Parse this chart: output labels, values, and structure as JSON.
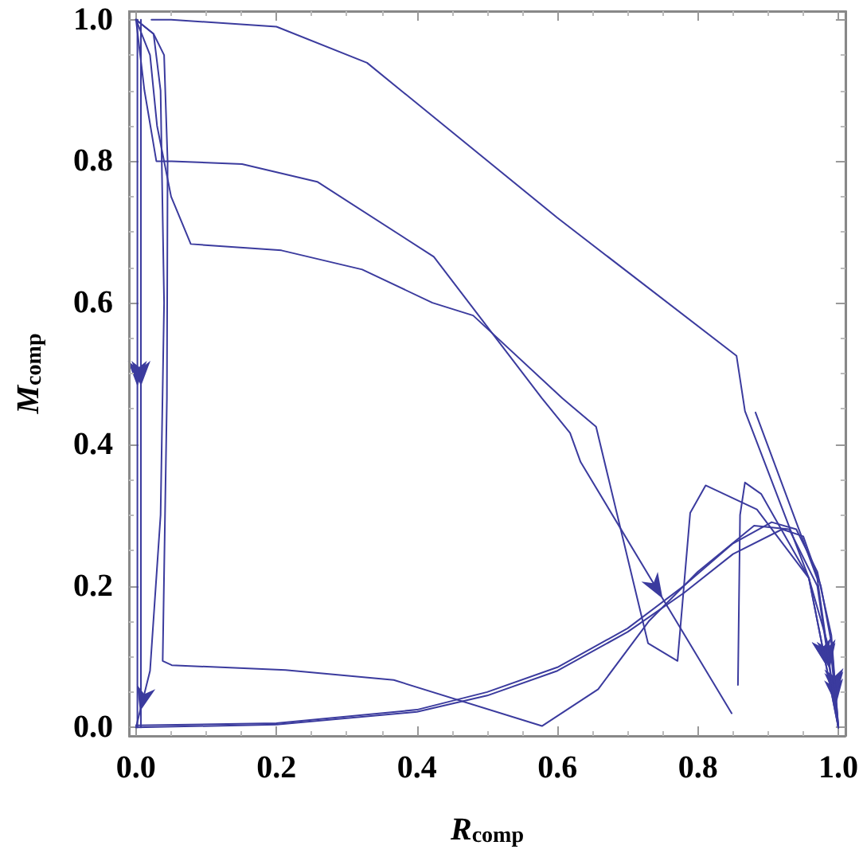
{
  "chart_data": {
    "type": "line",
    "xlabel": "R$_{comp}$",
    "ylabel": "M$_{comp}$",
    "xlim": [
      -0.01,
      1.01
    ],
    "ylim": [
      -0.012,
      1.012
    ],
    "xticks": [
      {
        "value": 0,
        "label": "0.0"
      },
      0.2,
      0.4,
      0.6,
      0.8,
      {
        "value": 1,
        "label": "1.0"
      }
    ],
    "yticks": [
      {
        "value": 0,
        "label": "0.0"
      },
      0.2,
      0.4,
      0.6,
      0.8,
      {
        "value": 1,
        "label": "1.0"
      }
    ],
    "grid": false,
    "marker": "none",
    "line_style": "solid",
    "series": [
      {
        "color": "#3b3b9e",
        "x": [
          0.022,
          0.05,
          0.2,
          0.329,
          0.6,
          0.855,
          0.867,
          0.958,
          0.99,
          1.0
        ],
        "values": [
          1.0,
          1.0,
          0.99,
          0.939,
          0.72,
          0.525,
          0.447,
          0.211,
          0.1,
          0.0
        ]
      },
      {
        "color": "#3b3b9e",
        "x": [
          0.0,
          0.012,
          0.029,
          0.051,
          0.151,
          0.258,
          0.424,
          0.578,
          0.618,
          0.633,
          0.848
        ],
        "values": [
          1.0,
          0.9,
          0.8,
          0.8,
          0.796,
          0.771,
          0.665,
          0.465,
          0.416,
          0.375,
          0.02
        ]
      },
      {
        "color": "#3b3b9e",
        "x": [
          0.0,
          0.02,
          0.03,
          0.05,
          0.078,
          0.207,
          0.322,
          0.422,
          0.48,
          0.607,
          0.655,
          0.729,
          0.771,
          0.789,
          0.811,
          0.884,
          0.958,
          1.0
        ],
        "values": [
          1.0,
          0.95,
          0.85,
          0.75,
          0.683,
          0.674,
          0.647,
          0.6,
          0.582,
          0.465,
          0.425,
          0.119,
          0.094,
          0.303,
          0.342,
          0.308,
          0.211,
          0.0
        ]
      },
      {
        "color": "#3b3b9e",
        "x": [
          0.0,
          0.025,
          0.04,
          0.045,
          0.044,
          0.038,
          0.051,
          0.213,
          0.367,
          0.578,
          0.658,
          0.73,
          0.8,
          0.88,
          0.93,
          0.97,
          1.0
        ],
        "values": [
          1.0,
          0.98,
          0.95,
          0.8,
          0.465,
          0.094,
          0.088,
          0.081,
          0.067,
          0.002,
          0.054,
          0.15,
          0.22,
          0.285,
          0.28,
          0.2,
          0.0
        ]
      },
      {
        "color": "#3b3b9e",
        "x": [
          0.857,
          0.86,
          0.867,
          0.89,
          0.958,
          1.0
        ],
        "values": [
          0.06,
          0.3,
          0.346,
          0.33,
          0.211,
          0.0
        ]
      },
      {
        "color": "#3b3b9e",
        "x": [
          0.882,
          0.97,
          1.0
        ],
        "values": [
          0.445,
          0.21,
          0.0
        ]
      },
      {
        "color": "#3b3b9e",
        "x": [
          0.0,
          0.2,
          0.4,
          0.5,
          0.6,
          0.7,
          0.78,
          0.85,
          0.905,
          0.94,
          0.97,
          0.99,
          1.0
        ],
        "values": [
          0.003,
          0.006,
          0.025,
          0.05,
          0.085,
          0.14,
          0.2,
          0.26,
          0.29,
          0.28,
          0.22,
          0.13,
          0.0
        ]
      },
      {
        "color": "#3b3b9e",
        "x": [
          0.0,
          0.2,
          0.4,
          0.5,
          0.6,
          0.7,
          0.78,
          0.85,
          0.92,
          0.95,
          0.975,
          0.99,
          1.0
        ],
        "values": [
          0.0,
          0.004,
          0.022,
          0.045,
          0.08,
          0.135,
          0.19,
          0.245,
          0.28,
          0.27,
          0.2,
          0.12,
          0.0
        ]
      },
      {
        "color": "#3b3b9e",
        "x": [
          0.0,
          0.025,
          0.035,
          0.04,
          0.035,
          0.02,
          0.0
        ],
        "values": [
          1.0,
          0.98,
          0.9,
          0.6,
          0.3,
          0.08,
          0.0
        ]
      },
      {
        "color": "#3b3b9e",
        "x": [
          0.002,
          0.002
        ],
        "values": [
          1.0,
          0.0
        ]
      },
      {
        "color": "#3b3b9e",
        "x": [
          0.007,
          0.007
        ],
        "values": [
          1.0,
          0.0
        ]
      }
    ]
  }
}
